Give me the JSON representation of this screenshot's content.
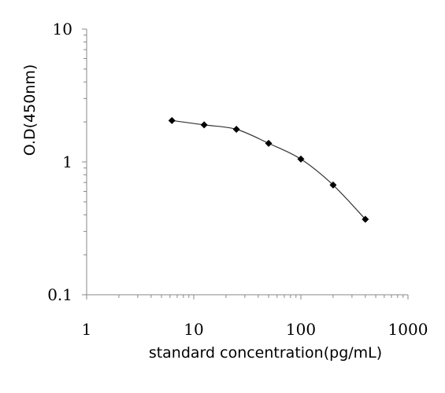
{
  "chart_data": {
    "type": "line",
    "xlabel": "standard concentration(pg/mL)",
    "ylabel": "O.D(450nm)",
    "xscale": "log",
    "yscale": "log",
    "xlim": [
      1,
      1000
    ],
    "ylim": [
      0.1,
      10
    ],
    "x_tick_labels": [
      "1",
      "10",
      "100",
      "1000"
    ],
    "y_tick_labels": [
      "0.1",
      "1",
      "10"
    ],
    "grid": false,
    "legend": "none",
    "marker": "diamond",
    "line_color": "#333333",
    "marker_color": "#000000",
    "series": [
      {
        "x": [
          6.25,
          12.5,
          25,
          50,
          100,
          200,
          400
        ],
        "y": [
          2.05,
          1.9,
          1.76,
          1.38,
          1.05,
          0.67,
          0.37
        ]
      }
    ]
  }
}
